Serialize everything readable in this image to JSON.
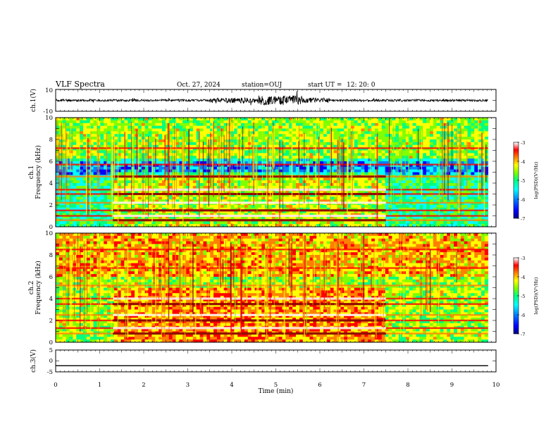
{
  "header": {
    "title": "VLF Spectra",
    "date": "Oct. 27, 2024",
    "station": "station=OUJ",
    "start_label": "start  UT  =",
    "start_time": "12: 20: 0"
  },
  "colors": {
    "colormap": [
      "#000080",
      "#0000ff",
      "#0080ff",
      "#00ffff",
      "#00ff80",
      "#80ff00",
      "#ffff00",
      "#ff8000",
      "#ff0000",
      "#800000",
      "#ffffff"
    ],
    "trace": "#000000"
  },
  "chart_data": [
    {
      "type": "line",
      "panel": "ch1-waveform",
      "ylabel": "ch.1(V)",
      "ylim": [
        -10,
        10
      ],
      "yticks": [
        "10",
        "-10"
      ],
      "xlim": [
        0,
        10
      ],
      "x_end_data": 9.82,
      "mean_value": 0
    },
    {
      "type": "heatmap",
      "panel": "ch1-spectrogram",
      "ylabel_line1": "ch.1",
      "ylabel_line2": "Frequency (kHz)",
      "ylim": [
        0,
        10
      ],
      "yticks": [
        "0",
        "2",
        "4",
        "6",
        "8",
        "10"
      ],
      "xlim": [
        0,
        10
      ],
      "x_end_data": 9.82,
      "clim": [
        -7,
        -3
      ],
      "colorbar_label": "log(PSD)(V²/Hz)",
      "colorbar_ticks": [
        "-3",
        "-4",
        "-5",
        "-6",
        "-7"
      ],
      "bright_interval_min": [
        1.3,
        7.5
      ],
      "bands_khz": [
        0.6,
        1.0,
        1.5,
        2.2,
        3.0,
        3.4,
        4.6,
        5.7,
        7.2
      ]
    },
    {
      "type": "heatmap",
      "panel": "ch2-spectrogram",
      "ylabel_line1": "ch.2",
      "ylabel_line2": "Frequency (kHz)",
      "ylim": [
        0,
        10
      ],
      "yticks": [
        "0",
        "2",
        "4",
        "6",
        "8",
        "10"
      ],
      "xlim": [
        0,
        10
      ],
      "x_end_data": 9.82,
      "clim": [
        -7,
        -3
      ],
      "colorbar_label": "log(PSD)(V²/Hz)",
      "colorbar_ticks": [
        "-3",
        "-4",
        "-5",
        "-6",
        "-7"
      ],
      "bright_interval_min": [
        1.3,
        7.5
      ],
      "bands_khz": [
        0.8,
        1.3,
        2.0,
        2.5,
        3.5,
        4.0,
        5.2,
        6.8,
        8.5
      ]
    },
    {
      "type": "line",
      "panel": "ch3-waveform",
      "ylabel": "ch.3(V)",
      "ylim": [
        -5,
        5
      ],
      "yticks": [
        "5",
        "0",
        "-5"
      ],
      "xlim": [
        0,
        10
      ],
      "x_end_data": 9.82,
      "constant_value": -2.2
    }
  ],
  "x_axis": {
    "label": "Time (min)",
    "ticks": [
      "0",
      "1",
      "2",
      "3",
      "4",
      "5",
      "6",
      "7",
      "8",
      "9",
      "10"
    ]
  }
}
